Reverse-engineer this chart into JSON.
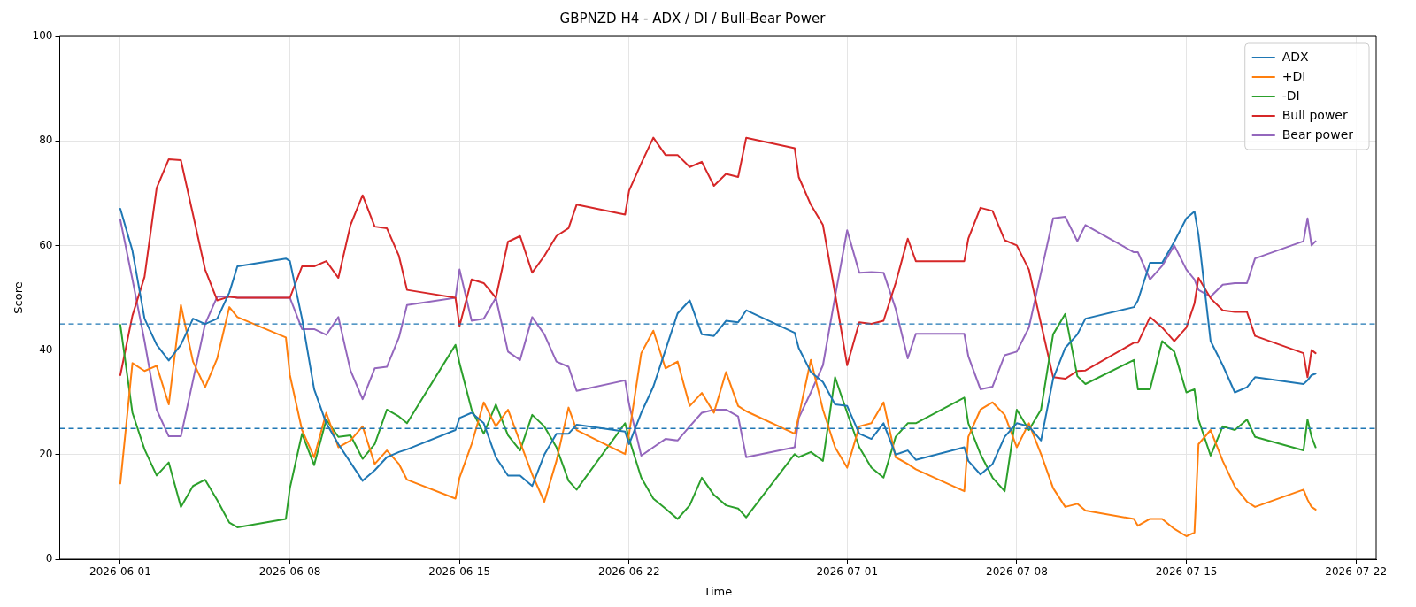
{
  "chart_data": {
    "type": "line",
    "title": "GBPNZD H4 - ADX / DI / Bull-Bear Power",
    "xlabel": "Time",
    "ylabel": "Score",
    "x": [
      "2026-06-01T00:00",
      "2026-06-01T12:00",
      "2026-06-02T00:00",
      "2026-06-02T12:00",
      "2026-06-03T00:00",
      "2026-06-03T12:00",
      "2026-06-04T00:00",
      "2026-06-04T12:00",
      "2026-06-05T00:00",
      "2026-06-05T12:00",
      "2026-06-05T20:00",
      "2026-06-07T20:00",
      "2026-06-08T00:00",
      "2026-06-08T12:00",
      "2026-06-09T00:00",
      "2026-06-09T12:00",
      "2026-06-10T00:00",
      "2026-06-10T12:00",
      "2026-06-11T00:00",
      "2026-06-11T12:00",
      "2026-06-12T00:00",
      "2026-06-12T12:00",
      "2026-06-12T20:00",
      "2026-06-14T20:00",
      "2026-06-15T00:00",
      "2026-06-15T12:00",
      "2026-06-16T00:00",
      "2026-06-16T12:00",
      "2026-06-17T00:00",
      "2026-06-17T12:00",
      "2026-06-18T00:00",
      "2026-06-18T12:00",
      "2026-06-19T00:00",
      "2026-06-19T12:00",
      "2026-06-19T20:00",
      "2026-06-21T20:00",
      "2026-06-22T00:00",
      "2026-06-22T12:00",
      "2026-06-23T00:00",
      "2026-06-23T12:00",
      "2026-06-24T00:00",
      "2026-06-24T12:00",
      "2026-06-25T00:00",
      "2026-06-25T12:00",
      "2026-06-26T00:00",
      "2026-06-26T12:00",
      "2026-06-26T20:00",
      "2026-06-28T20:00",
      "2026-06-29T00:00",
      "2026-06-29T12:00",
      "2026-06-30T00:00",
      "2026-06-30T12:00",
      "2026-07-01T00:00",
      "2026-07-01T12:00",
      "2026-07-02T00:00",
      "2026-07-02T12:00",
      "2026-07-03T00:00",
      "2026-07-03T12:00",
      "2026-07-03T20:00",
      "2026-07-05T20:00",
      "2026-07-06T00:00",
      "2026-07-06T12:00",
      "2026-07-07T00:00",
      "2026-07-07T12:00",
      "2026-07-08T00:00",
      "2026-07-08T12:00",
      "2026-07-09T00:00",
      "2026-07-09T12:00",
      "2026-07-10T00:00",
      "2026-07-10T12:00",
      "2026-07-10T20:00",
      "2026-07-12T20:00",
      "2026-07-13T00:00",
      "2026-07-13T12:00",
      "2026-07-14T00:00",
      "2026-07-14T12:00",
      "2026-07-15T00:00",
      "2026-07-15T08:00",
      "2026-07-15T12:00",
      "2026-07-16T00:00",
      "2026-07-16T12:00",
      "2026-07-17T00:00",
      "2026-07-17T12:00",
      "2026-07-17T20:00",
      "2026-07-19T20:00",
      "2026-07-20T00:00",
      "2026-07-20T04:00",
      "2026-07-20T08:00"
    ],
    "series": [
      {
        "name": "ADX",
        "color": "#1f77b4",
        "values": [
          67,
          59,
          46,
          41,
          38,
          41,
          46,
          45,
          46,
          51,
          56,
          57.5,
          57,
          46,
          32.5,
          26,
          22,
          18.5,
          15,
          17,
          19.5,
          20.5,
          21,
          24.7,
          27,
          28,
          26,
          19.5,
          16,
          16,
          14,
          20,
          24,
          24,
          25.7,
          24.4,
          22,
          28,
          33,
          40,
          47,
          49.5,
          43,
          42.7,
          45.6,
          45.3,
          47.6,
          43.3,
          40.4,
          35.8,
          33.9,
          29.6,
          29.3,
          24,
          23,
          26,
          20,
          20.8,
          19,
          21.4,
          18.8,
          16.2,
          18.2,
          23.4,
          26,
          25.4,
          22.7,
          34.5,
          40.4,
          43,
          46,
          48.2,
          49.5,
          56.7,
          56.7,
          60.7,
          65.2,
          66.5,
          62,
          41.7,
          37.1,
          31.9,
          32.9,
          34.8,
          33.5,
          34.2,
          35.2,
          35.5
        ]
      },
      {
        "name": "+DI",
        "color": "#ff7f0e",
        "values": [
          14.5,
          37.5,
          36,
          37,
          29.6,
          48.6,
          37.8,
          32.9,
          38.4,
          48.2,
          46.3,
          42.4,
          35.2,
          24.7,
          19.5,
          28,
          21.4,
          22.7,
          25.4,
          18.2,
          20.8,
          18.2,
          15.2,
          11.6,
          15.6,
          22,
          30,
          25.4,
          28.6,
          22.4,
          16.2,
          11,
          18.8,
          29,
          24.7,
          20.1,
          24,
          39.4,
          43.7,
          36.5,
          37.8,
          29.3,
          31.8,
          28,
          35.8,
          29.3,
          28.3,
          24,
          27.3,
          38.1,
          28.6,
          21.4,
          17.5,
          25.4,
          26,
          30,
          19.5,
          18.2,
          17.2,
          13,
          23.4,
          28.6,
          30,
          27.6,
          21.4,
          26,
          20.1,
          13.6,
          10,
          10.6,
          9.3,
          7.7,
          6.4,
          7.7,
          7.7,
          5.8,
          4.4,
          5.1,
          22,
          24.7,
          18.8,
          13.9,
          11,
          10,
          13.3,
          11.4,
          10,
          9.5
        ]
      },
      {
        "name": "-DI",
        "color": "#2ca02c",
        "values": [
          44.8,
          28,
          21,
          16,
          18.5,
          10,
          14,
          15.2,
          11.3,
          7,
          6.1,
          7.7,
          13.6,
          24,
          18,
          26.7,
          23.4,
          23.7,
          19.2,
          22,
          28.6,
          27.3,
          26,
          41,
          37.5,
          28.6,
          24,
          29.6,
          23.7,
          20.8,
          27.6,
          25.4,
          21.4,
          15,
          13.3,
          26,
          23,
          15.6,
          11.6,
          9.7,
          7.7,
          10.3,
          15.6,
          12.3,
          10.3,
          9.7,
          8,
          20.1,
          19.5,
          20.5,
          18.8,
          34.8,
          28,
          21.4,
          17.5,
          15.6,
          23.4,
          26,
          26,
          30.9,
          26,
          20.1,
          15.6,
          13,
          28.6,
          24.7,
          28.6,
          43,
          46.9,
          35,
          33.5,
          38.1,
          32.5,
          32.5,
          41.7,
          39.7,
          31.9,
          32.5,
          26.7,
          19.8,
          25.4,
          24.7,
          26.7,
          23.4,
          20.8,
          26.7,
          23.4,
          21.4
        ]
      },
      {
        "name": "Bull power",
        "color": "#d62728",
        "values": [
          35.2,
          46.6,
          54,
          71,
          76.5,
          76.3,
          65.9,
          55.4,
          49.5,
          50.2,
          50,
          50,
          50,
          56,
          56,
          57,
          53.8,
          63.9,
          69.6,
          63.6,
          63.3,
          58,
          51.5,
          50,
          44.6,
          53.5,
          52.8,
          50,
          60.7,
          61.8,
          54.8,
          58,
          61.8,
          63.3,
          67.8,
          65.9,
          70.5,
          75.7,
          80.6,
          77.3,
          77.3,
          75,
          76,
          71.4,
          73.7,
          73.1,
          80.6,
          78.6,
          73.1,
          67.8,
          63.9,
          50.8,
          37.1,
          45.3,
          45,
          45.6,
          52.8,
          61.3,
          57,
          57,
          61.3,
          67.2,
          66.6,
          61,
          60,
          55.4,
          45,
          34.8,
          34.5,
          36,
          36.1,
          41.4,
          41.4,
          46.3,
          44.3,
          41.7,
          44.3,
          48.9,
          53.8,
          49.9,
          47.6,
          47.3,
          47.3,
          42.7,
          39.4,
          34.8,
          40,
          39.4
        ]
      },
      {
        "name": "Bear power",
        "color": "#9467bd",
        "values": [
          64.9,
          53.5,
          41.7,
          28.6,
          23.5,
          23.5,
          34.2,
          45,
          50.2,
          50.2,
          50,
          50,
          50,
          44,
          44,
          42.9,
          46.3,
          36.1,
          30.6,
          36.5,
          36.8,
          42.4,
          48.6,
          50,
          55.4,
          45.6,
          46,
          50,
          39.7,
          38.1,
          46.3,
          43,
          37.8,
          36.8,
          32.2,
          34.2,
          29.6,
          19.8,
          21.4,
          23,
          22.7,
          25.4,
          28,
          28.6,
          28.6,
          27.3,
          19.5,
          21.4,
          27,
          31.9,
          37.1,
          50.2,
          62.9,
          54.8,
          54.9,
          54.8,
          47.9,
          38.4,
          43.1,
          43.1,
          38.8,
          32.5,
          33,
          39,
          39.7,
          44.3,
          54.8,
          65.2,
          65.5,
          60.8,
          63.9,
          58.7,
          58.7,
          53.5,
          56.1,
          60,
          55.4,
          53.5,
          51.5,
          50.2,
          52.5,
          52.8,
          52.8,
          57.5,
          60.8,
          65.2,
          60,
          60.8
        ]
      }
    ],
    "xlim": [
      "2026-05-29T12:00",
      "2026-07-22T20:00"
    ],
    "xticks": [
      "2026-06-01",
      "2026-06-08",
      "2026-06-15",
      "2026-06-22",
      "2026-07-01",
      "2026-07-08",
      "2026-07-15",
      "2026-07-22"
    ],
    "ylim": [
      0,
      100
    ],
    "yticks": [
      0,
      20,
      40,
      60,
      80,
      100
    ],
    "ref_lines": [
      {
        "axis": "y",
        "value": 45,
        "color": "#1f77b4",
        "line_style": "dashed"
      },
      {
        "axis": "y",
        "value": 25,
        "color": "#1f77b4",
        "line_style": "dashed"
      }
    ],
    "grid": true,
    "legend": "top right"
  }
}
